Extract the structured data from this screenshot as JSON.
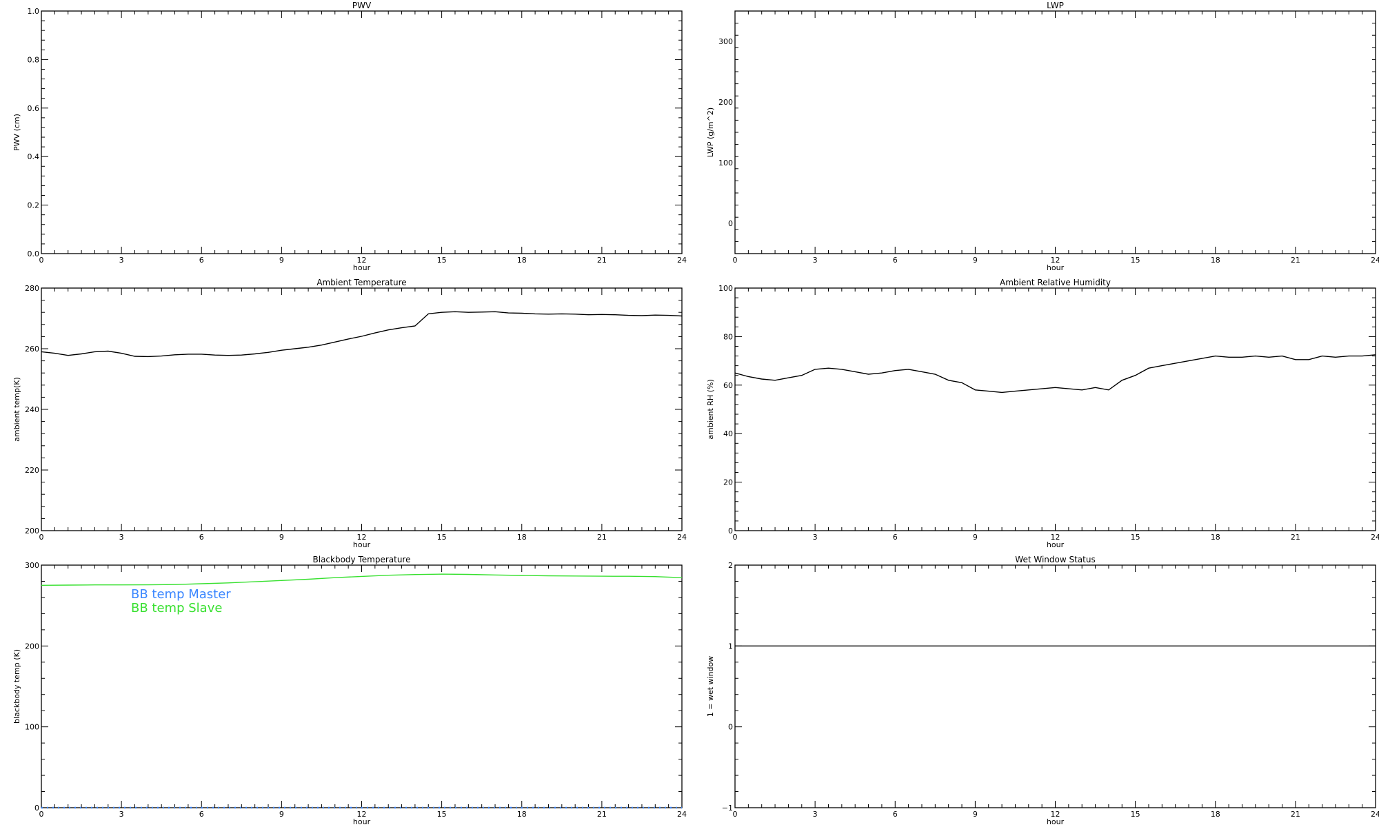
{
  "colors": {
    "background": "#ffffff",
    "axis": "#000000",
    "master": "#3a86ff",
    "slave": "#38e030"
  },
  "chart_data": [
    {
      "id": "pwv",
      "type": "line",
      "title": "PWV",
      "xlabel": "hour",
      "ylabel": "PWV (cm)",
      "xlim": [
        0,
        24
      ],
      "ylim": [
        0.0,
        1.0
      ],
      "xticks": [
        0,
        3,
        6,
        9,
        12,
        15,
        18,
        21,
        24
      ],
      "yticks": [
        0.0,
        0.2,
        0.4,
        0.6,
        0.8,
        1.0
      ],
      "ytick_labels": [
        "0.0",
        "0.2",
        "0.4",
        "0.6",
        "0.8",
        "1.0"
      ],
      "series": []
    },
    {
      "id": "lwp",
      "type": "line",
      "title": "LWP",
      "xlabel": "hour",
      "ylabel": "LWP (g/m^2)",
      "xlim": [
        0,
        24
      ],
      "ylim": [
        -50,
        350
      ],
      "xticks": [
        0,
        3,
        6,
        9,
        12,
        15,
        18,
        21,
        24
      ],
      "yticks": [
        0,
        100,
        200,
        300
      ],
      "ytick_labels": [
        "0",
        "100",
        "200",
        "300"
      ],
      "series": []
    },
    {
      "id": "ambient-temp",
      "type": "line",
      "title": "Ambient Temperature",
      "xlabel": "hour",
      "ylabel": "ambient temp(K)",
      "xlim": [
        0,
        24
      ],
      "ylim": [
        200,
        280
      ],
      "xticks": [
        0,
        3,
        6,
        9,
        12,
        15,
        18,
        21,
        24
      ],
      "yticks": [
        200,
        220,
        240,
        260,
        280
      ],
      "ytick_labels": [
        "200",
        "220",
        "240",
        "260",
        "280"
      ],
      "series": [
        {
          "color": "#000000",
          "x": [
            0,
            0.5,
            1,
            1.5,
            2,
            2.5,
            3,
            3.5,
            4,
            4.5,
            5,
            5.5,
            6,
            6.5,
            7,
            7.5,
            8,
            8.5,
            9,
            9.5,
            10,
            10.5,
            11,
            11.5,
            12,
            12.5,
            13,
            13.5,
            14,
            14.5,
            15,
            15.5,
            16,
            16.5,
            17,
            17.5,
            18,
            18.5,
            19,
            19.5,
            20,
            20.5,
            21,
            21.5,
            22,
            22.5,
            23,
            23.5,
            24
          ],
          "y": [
            259,
            258.5,
            257.8,
            258.3,
            259,
            259.2,
            258.5,
            257.5,
            257.4,
            257.6,
            258,
            258.2,
            258.2,
            257.9,
            257.8,
            257.9,
            258.3,
            258.8,
            259.5,
            260,
            260.5,
            261.2,
            262.2,
            263.2,
            264.1,
            265.2,
            266.2,
            266.9,
            267.5,
            271.5,
            272,
            272.2,
            272,
            272.1,
            272.2,
            271.8,
            271.7,
            271.5,
            271.4,
            271.5,
            271.4,
            271.2,
            271.3,
            271.2,
            271,
            270.9,
            271.1,
            271,
            270.8
          ]
        }
      ]
    },
    {
      "id": "ambient-rh",
      "type": "line",
      "title": "Ambient Relative Humidity",
      "xlabel": "hour",
      "ylabel": "ambient RH (%)",
      "xlim": [
        0,
        24
      ],
      "ylim": [
        0,
        100
      ],
      "xticks": [
        0,
        3,
        6,
        9,
        12,
        15,
        18,
        21,
        24
      ],
      "yticks": [
        0,
        20,
        40,
        60,
        80,
        100
      ],
      "ytick_labels": [
        "0",
        "20",
        "40",
        "60",
        "80",
        "100"
      ],
      "series": [
        {
          "color": "#000000",
          "x": [
            0,
            0.5,
            1,
            1.5,
            2,
            2.5,
            3,
            3.5,
            4,
            4.5,
            5,
            5.5,
            6,
            6.5,
            7,
            7.5,
            8,
            8.5,
            9,
            9.5,
            10,
            10.5,
            11,
            11.5,
            12,
            12.5,
            13,
            13.5,
            14,
            14.5,
            15,
            15.5,
            16,
            16.5,
            17,
            17.5,
            18,
            18.5,
            19,
            19.5,
            20,
            20.5,
            21,
            21.5,
            22,
            22.5,
            23,
            23.5,
            24
          ],
          "y": [
            65,
            63.5,
            62.5,
            62,
            63,
            64,
            66.5,
            67,
            66.5,
            65.5,
            64.5,
            65,
            66,
            66.5,
            65.5,
            64.5,
            62,
            61,
            58,
            57.5,
            57,
            57.5,
            58,
            58.5,
            59,
            58.5,
            58,
            59,
            58,
            62,
            64,
            67,
            68,
            69,
            70,
            71,
            72,
            71.5,
            71.5,
            72,
            71.5,
            72,
            70.5,
            70.5,
            72,
            71.5,
            72,
            72,
            72.5
          ]
        }
      ]
    },
    {
      "id": "blackbody-temp",
      "type": "line",
      "title": "Blackbody Temperature",
      "xlabel": "hour",
      "ylabel": "blackbody temp (K)",
      "xlim": [
        0,
        24
      ],
      "ylim": [
        0,
        300
      ],
      "xticks": [
        0,
        3,
        6,
        9,
        12,
        15,
        18,
        21,
        24
      ],
      "yticks": [
        0,
        100,
        200,
        300
      ],
      "ytick_labels": [
        "0",
        "100",
        "200",
        "300"
      ],
      "legend": "upper-left",
      "series": [
        {
          "name": "BB temp Master",
          "color": "#3a86ff",
          "style": "dotted",
          "x": [
            0,
            3,
            6,
            9,
            12,
            15,
            18,
            21,
            24
          ],
          "y": [
            0,
            0,
            0,
            0,
            0,
            0,
            0,
            0,
            0
          ]
        },
        {
          "name": "BB temp Slave",
          "color": "#38e030",
          "x": [
            0,
            1,
            2,
            3,
            4,
            5,
            6,
            7,
            8,
            9,
            10,
            11,
            12,
            13,
            14,
            15,
            16,
            17,
            18,
            19,
            20,
            21,
            22,
            23,
            24
          ],
          "y": [
            275,
            275.3,
            275.5,
            275.5,
            275.6,
            276,
            277,
            278,
            279.5,
            281,
            282.5,
            284.5,
            286,
            287.5,
            288.3,
            288.8,
            288.5,
            287.8,
            287.2,
            286.8,
            286.5,
            286.3,
            286.2,
            285.8,
            284.5
          ]
        }
      ]
    },
    {
      "id": "wet-window",
      "type": "line",
      "title": "Wet Window Status",
      "xlabel": "hour",
      "ylabel": "1 = wet window",
      "xlim": [
        0,
        24
      ],
      "ylim": [
        -1,
        2
      ],
      "xticks": [
        0,
        3,
        6,
        9,
        12,
        15,
        18,
        21,
        24
      ],
      "yticks": [
        -1,
        0,
        1,
        2
      ],
      "ytick_labels": [
        "−1",
        "0",
        "1",
        "2"
      ],
      "series": [
        {
          "color": "#000000",
          "x": [
            0,
            24
          ],
          "y": [
            1,
            1
          ]
        }
      ]
    }
  ]
}
